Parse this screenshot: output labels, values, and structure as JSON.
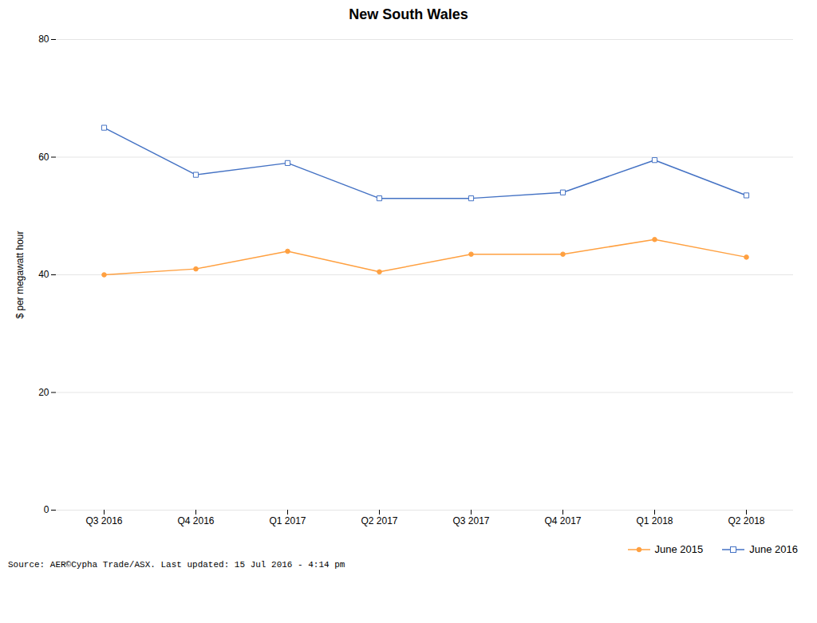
{
  "chart_data": {
    "type": "line",
    "title": "New South Wales",
    "ylabel": "$ per megawatt hour",
    "categories": [
      "Q3 2016",
      "Q4 2016",
      "Q1 2017",
      "Q2 2017",
      "Q3 2017",
      "Q4 2017",
      "Q1 2018",
      "Q2 2018"
    ],
    "series": [
      {
        "name": "June 2015",
        "color": "#FFA040",
        "marker": "circle",
        "values": [
          40.0,
          41.0,
          44.0,
          40.5,
          43.5,
          43.5,
          46.0,
          43.0
        ]
      },
      {
        "name": "June 2016",
        "color": "#4472C4",
        "marker": "square",
        "values": [
          65.0,
          57.0,
          59.0,
          53.0,
          53.0,
          54.0,
          59.5,
          53.5
        ]
      }
    ],
    "ylim": [
      0,
      80
    ],
    "yticks": [
      0,
      20,
      40,
      60,
      80
    ],
    "grid": true,
    "legend": "bottom",
    "annotations": [
      "Source: AER©Cypha Trade/ASX. Last updated: 15 Jul 2016 - 4:14 pm"
    ]
  }
}
